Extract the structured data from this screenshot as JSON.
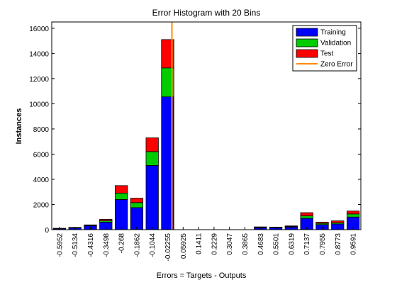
{
  "chart_data": {
    "type": "bar",
    "stacked": true,
    "title": "Error Histogram with 20 Bins",
    "xlabel": "Errors = Targets - Outputs",
    "ylabel": "Instances",
    "ylim": [
      0,
      16500
    ],
    "yticks": [
      0,
      2000,
      4000,
      6000,
      8000,
      10000,
      12000,
      14000,
      16000
    ],
    "categories": [
      "-0.5952",
      "-0.5134",
      "-0.4316",
      "-0.3498",
      "-0.268",
      "-0.1862",
      "-0.1044",
      "-0.02255",
      "0.05925",
      "0.1411",
      "0.2229",
      "0.3047",
      "0.3865",
      "0.4683",
      "0.5501",
      "0.6319",
      "0.7137",
      "0.7955",
      "0.8773",
      "0.9591"
    ],
    "series": [
      {
        "name": "Training",
        "color": "#0000ff",
        "values": [
          70,
          130,
          300,
          600,
          2400,
          1750,
          5100,
          10550,
          0,
          0,
          0,
          0,
          0,
          150,
          150,
          200,
          900,
          400,
          450,
          1000
        ]
      },
      {
        "name": "Validation",
        "color": "#00cc00",
        "values": [
          20,
          30,
          50,
          120,
          500,
          400,
          1100,
          2300,
          0,
          0,
          0,
          0,
          0,
          40,
          30,
          50,
          200,
          100,
          100,
          250
        ]
      },
      {
        "name": "Test",
        "color": "#ff0000",
        "values": [
          20,
          20,
          30,
          100,
          600,
          350,
          1100,
          2250,
          0,
          0,
          0,
          0,
          0,
          30,
          20,
          50,
          250,
          100,
          150,
          230
        ]
      }
    ],
    "reference_lines": [
      {
        "name": "Zero Error",
        "color": "#ff8c00",
        "x": 0
      }
    ],
    "legend": {
      "position": "top-right",
      "entries": [
        "Training",
        "Validation",
        "Test",
        "Zero Error"
      ]
    },
    "grid": false
  }
}
